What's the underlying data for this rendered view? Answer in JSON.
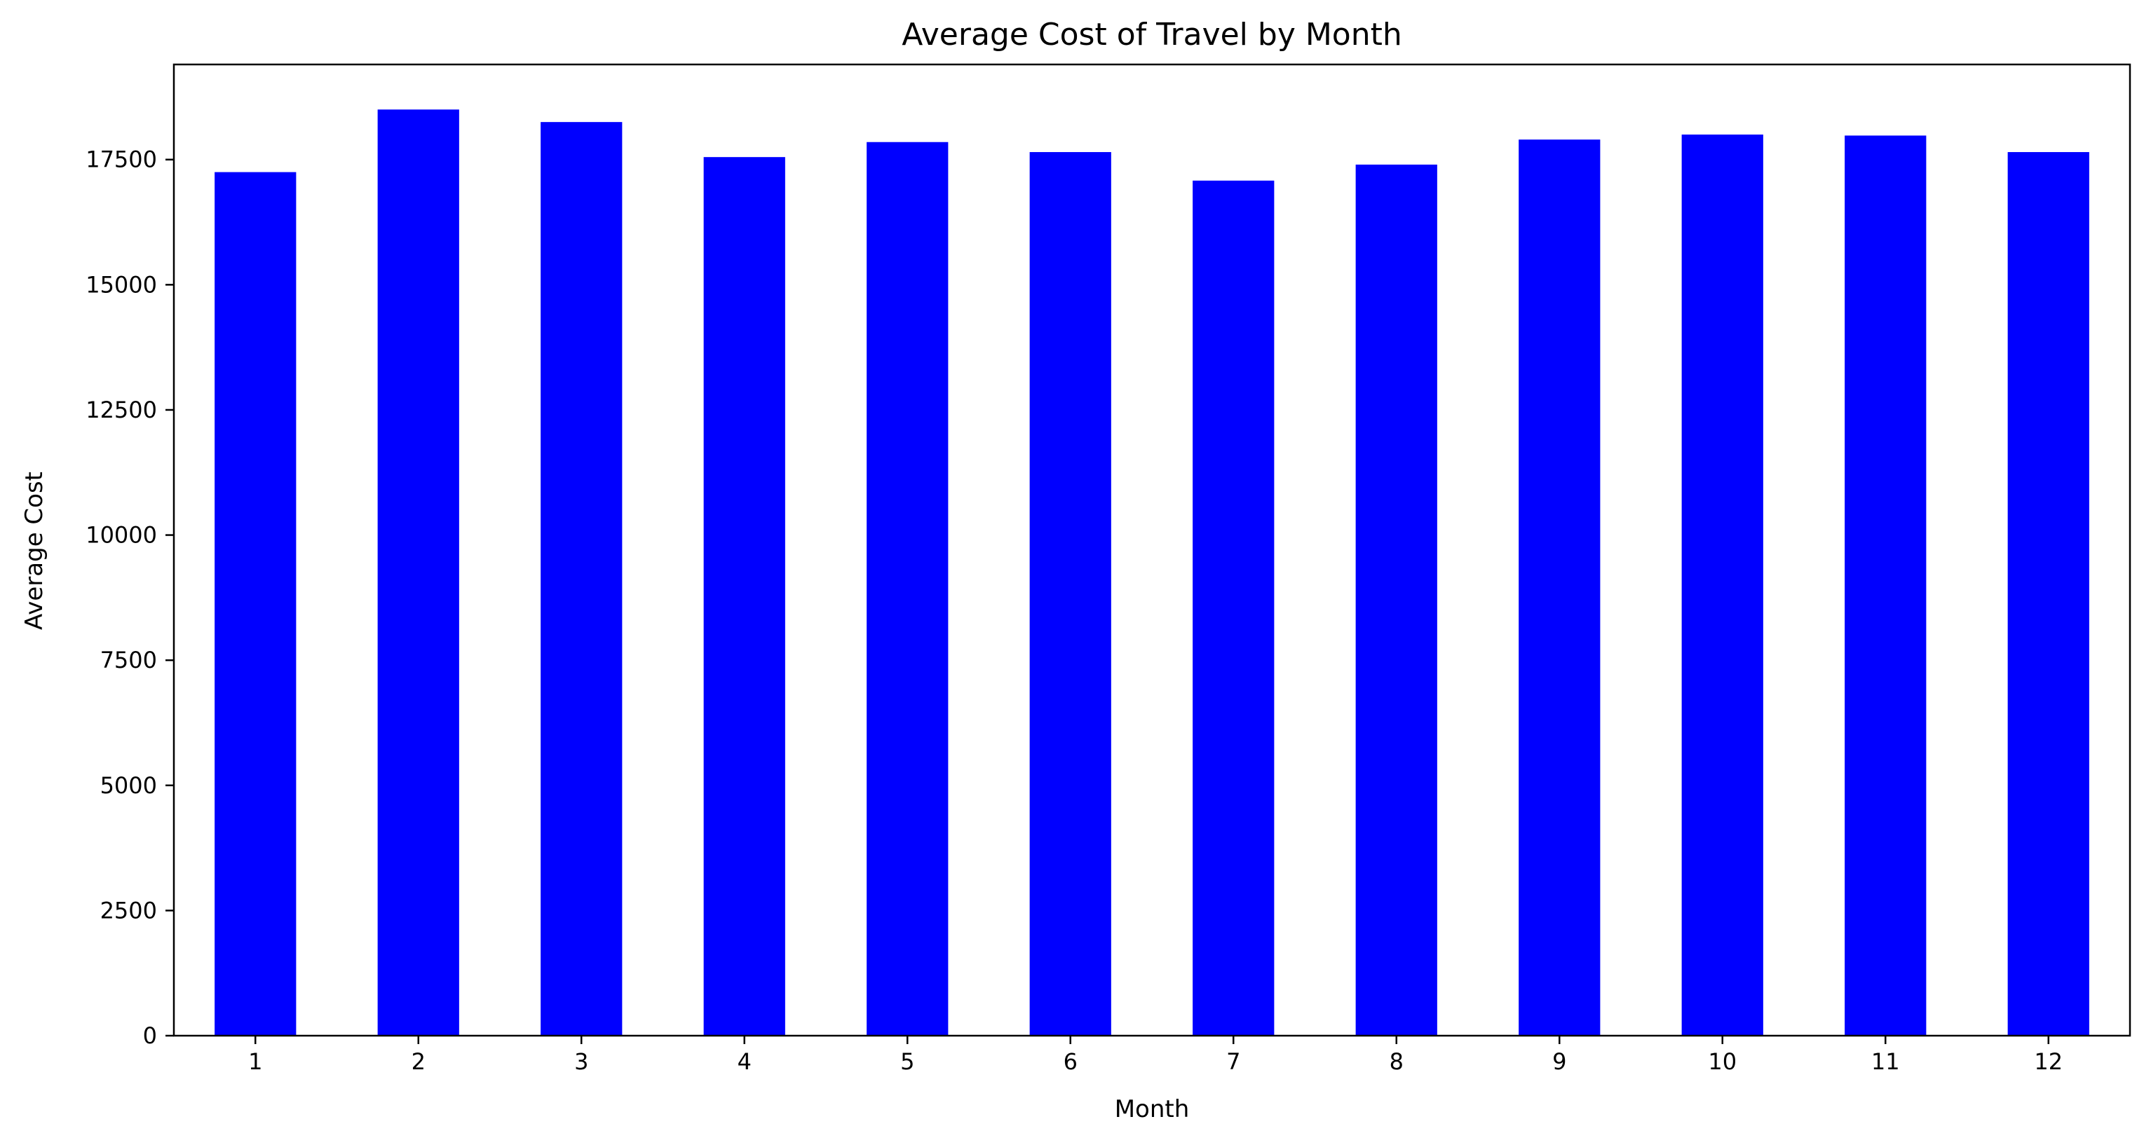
{
  "chart_data": {
    "type": "bar",
    "title": "Average Cost of Travel by Month",
    "xlabel": "Month",
    "ylabel": "Average Cost",
    "categories": [
      "1",
      "2",
      "3",
      "4",
      "5",
      "6",
      "7",
      "8",
      "9",
      "10",
      "11",
      "12"
    ],
    "values": [
      17250,
      18500,
      18250,
      17550,
      17850,
      17650,
      17080,
      17400,
      17900,
      18000,
      17980,
      17650
    ],
    "ylim": [
      0,
      19400
    ],
    "yticks": [
      0,
      2500,
      5000,
      7500,
      10000,
      12500,
      15000,
      17500
    ],
    "ytick_labels": [
      "0",
      "2500",
      "5000",
      "7500",
      "10000",
      "12500",
      "15000",
      "17500"
    ],
    "bar_color": "#0000ff",
    "grid": false,
    "legend": "none"
  }
}
